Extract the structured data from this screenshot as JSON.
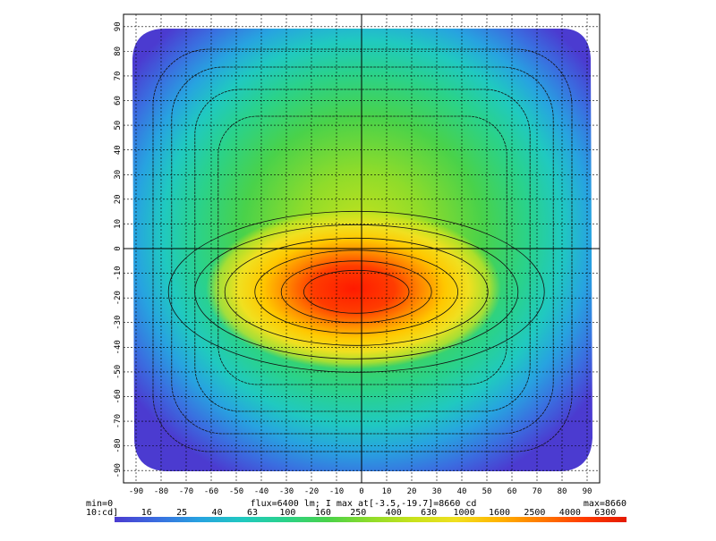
{
  "chart_data": {
    "type": "heatmap",
    "title": "",
    "xlabel": "",
    "ylabel": "",
    "xlim": [
      -95,
      95
    ],
    "ylim": [
      -95,
      95
    ],
    "x_ticks": [
      -90,
      -80,
      -70,
      -60,
      -50,
      -40,
      -30,
      -20,
      -10,
      0,
      10,
      20,
      30,
      40,
      50,
      60,
      70,
      80,
      90
    ],
    "y_ticks": [
      90,
      80,
      70,
      60,
      50,
      40,
      30,
      20,
      10,
      0,
      -10,
      -20,
      -30,
      -40,
      -50,
      -60,
      -70,
      -80,
      -90
    ],
    "grid": true,
    "annotation": "flux=6400 lm; I max at[-3.5,-19.7]=8660 cd",
    "min_label": "min=0",
    "max_label": "max=8660",
    "unit_label": "10:cd]",
    "peak": {
      "x": -3.5,
      "y": -19.7,
      "value": 8660
    },
    "colorbar": {
      "ticks": [
        "16",
        "25",
        "40",
        "63",
        "100",
        "160",
        "250",
        "400",
        "630",
        "1000",
        "1600",
        "2500",
        "4000",
        "6300"
      ],
      "colors": [
        "#4b3bd0",
        "#3a6ee0",
        "#27a3e0",
        "#20c9c0",
        "#2ad28a",
        "#49d24a",
        "#8fdc2a",
        "#c8e21c",
        "#f0e020",
        "#ffb400",
        "#ff7a00",
        "#ff3c00",
        "#e41a00"
      ]
    }
  }
}
